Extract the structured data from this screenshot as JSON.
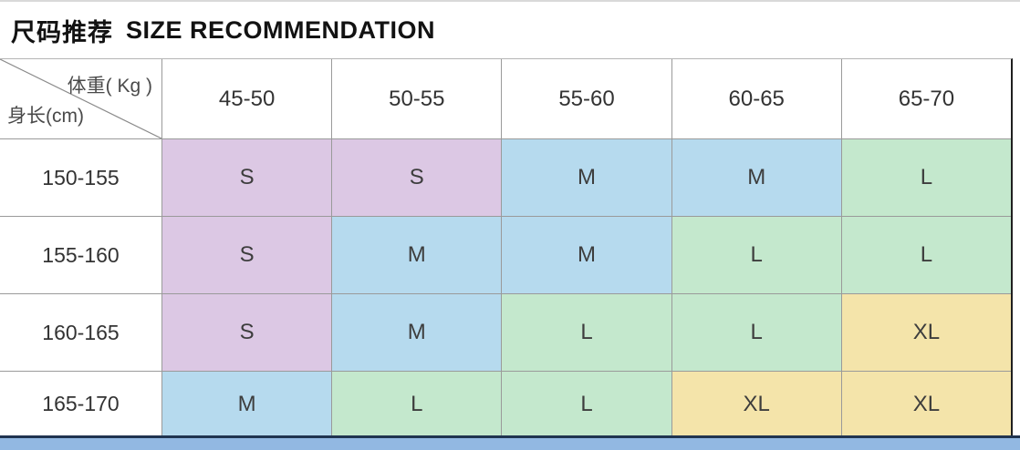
{
  "title": {
    "zh": "尺码推荐",
    "en": "SIZE RECOMMENDATION"
  },
  "table": {
    "corner": {
      "top_label": "体重( Kg )",
      "bottom_label": "身长(cm)"
    },
    "weight_columns": [
      "45-50",
      "50-55",
      "55-60",
      "60-65",
      "65-70"
    ],
    "rows": [
      {
        "height_range": "150-155",
        "sizes": [
          "S",
          "S",
          "M",
          "M",
          "L"
        ]
      },
      {
        "height_range": "155-160",
        "sizes": [
          "S",
          "M",
          "M",
          "L",
          "L"
        ]
      },
      {
        "height_range": "160-165",
        "sizes": [
          "S",
          "M",
          "L",
          "L",
          "XL"
        ]
      },
      {
        "height_range": "165-170",
        "sizes": [
          "M",
          "L",
          "L",
          "XL",
          "XL"
        ]
      }
    ],
    "size_colors": {
      "S": "#dcc8e4",
      "M": "#b6daee",
      "L": "#c4e8cd",
      "XL": "#f4e4aa"
    }
  },
  "chart_data": {
    "type": "table",
    "title": "尺码推荐 SIZE RECOMMENDATION",
    "columns": [
      "体重(Kg) / 身长(cm)",
      "45-50",
      "50-55",
      "55-60",
      "60-65",
      "65-70"
    ],
    "rows": [
      [
        "150-155",
        "S",
        "S",
        "M",
        "M",
        "L"
      ],
      [
        "155-160",
        "S",
        "M",
        "M",
        "L",
        "L"
      ],
      [
        "160-165",
        "S",
        "M",
        "L",
        "L",
        "XL"
      ],
      [
        "165-170",
        "M",
        "L",
        "L",
        "XL",
        "XL"
      ]
    ]
  },
  "footer": {
    "bar_color": "#92b8e2",
    "bar_top_color": "#203450"
  }
}
